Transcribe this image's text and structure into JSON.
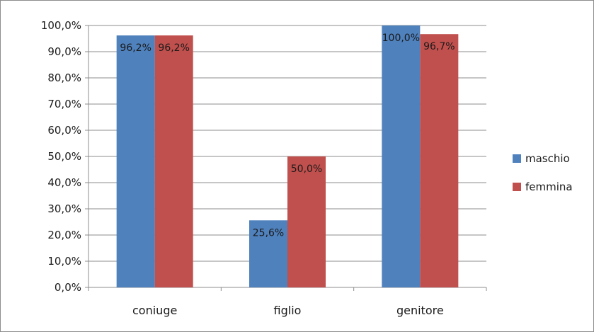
{
  "chart_data": {
    "type": "bar",
    "categories": [
      "coniuge",
      "figlio",
      "genitore"
    ],
    "series": [
      {
        "name": "maschio",
        "values": [
          96.2,
          25.6,
          100.0
        ],
        "labels": [
          "96,2%",
          "25,6%",
          "100,0%"
        ],
        "color": "#4f81bd"
      },
      {
        "name": "femmina",
        "values": [
          96.2,
          50.0,
          96.7
        ],
        "labels": [
          "96,2%",
          "50,0%",
          "96,7%"
        ],
        "color": "#c0504d"
      }
    ],
    "ylim": [
      0,
      100
    ],
    "yticks": [
      {
        "value": 0,
        "label": "0,0%"
      },
      {
        "value": 10,
        "label": "10,0%"
      },
      {
        "value": 20,
        "label": "20,0%"
      },
      {
        "value": 30,
        "label": "30,0%"
      },
      {
        "value": 40,
        "label": "40,0%"
      },
      {
        "value": 50,
        "label": "50,0%"
      },
      {
        "value": 60,
        "label": "60,0%"
      },
      {
        "value": 70,
        "label": "70,0%"
      },
      {
        "value": 80,
        "label": "80,0%"
      },
      {
        "value": 90,
        "label": "90,0%"
      },
      {
        "value": 100,
        "label": "100,0%"
      }
    ],
    "grid": true,
    "legend": "right",
    "title": "",
    "xlabel": "",
    "ylabel": ""
  }
}
